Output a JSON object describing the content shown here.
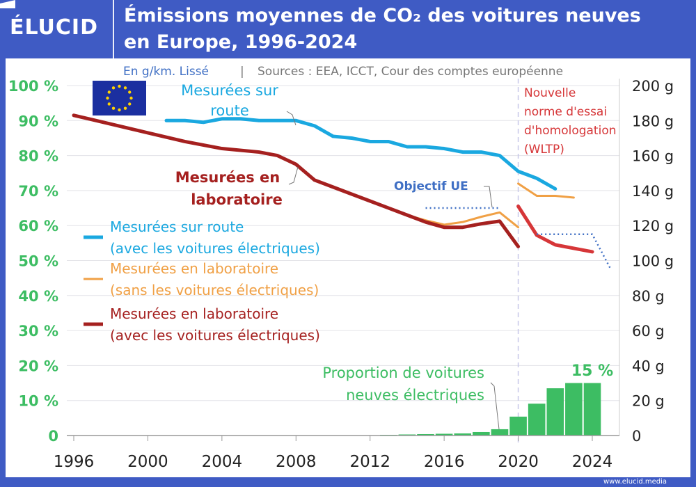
{
  "header": {
    "logo": "ÉLUCID",
    "title_line1": "Émissions moyennes de CO₂ des voitures neuves",
    "title_line2": "en Europe, 1996-2024"
  },
  "subtitle": {
    "unit": "En g/km. Lissé",
    "separator": "|",
    "sources": "Sources : EEA, ICCT, Cour des comptes européenne"
  },
  "footer": {
    "url": "www.elucid.media"
  },
  "colors": {
    "blue_road": "#1aa8e0",
    "orange_lab_no_ev": "#f0a045",
    "darkred_lab_ev": "#a5201f",
    "red_wltp": "#d63638",
    "green_ev": "#3dbd63",
    "objective": "#3f6fc4",
    "header_bg": "#3f5bc4"
  },
  "annotations": {
    "road": [
      "Mesurées sur",
      "route"
    ],
    "lab": [
      "Mesurées en",
      "laboratoire"
    ],
    "objective": "Objectif UE",
    "wltp": [
      "Nouvelle",
      "norme d'essai",
      "d'homologation",
      "(WLTP)"
    ],
    "ev_share": [
      "Proportion de voitures",
      "neuves électriques"
    ],
    "ev_last": "15 %"
  },
  "legend": [
    {
      "line1": "Mesurées sur route",
      "line2": "(avec les voitures électriques)",
      "color": "#1aa8e0"
    },
    {
      "line1": "Mesurées en laboratoire",
      "line2": "(sans les voitures électriques)",
      "color": "#f0a045"
    },
    {
      "line1": "Mesurées en laboratoire",
      "line2": "(avec les voitures électriques)",
      "color": "#a5201f"
    }
  ],
  "chart_data": {
    "type": "line+bar",
    "x_ticks": [
      "1996",
      "2000",
      "2004",
      "2008",
      "2012",
      "2016",
      "2020",
      "2024"
    ],
    "xlim": [
      1996,
      2025
    ],
    "y_left": {
      "ticks": [
        "0",
        "10 %",
        "20 %",
        "30 %",
        "40 %",
        "50 %",
        "60 %",
        "70 %",
        "80 %",
        "90 %",
        "100 %"
      ],
      "range": [
        0,
        100
      ]
    },
    "y_right": {
      "ticks": [
        "0",
        "20 g",
        "40 g",
        "60 g",
        "80 g",
        "100 g",
        "120 g",
        "140 g",
        "160 g",
        "180 g",
        "200 g"
      ],
      "range": [
        0,
        200
      ]
    },
    "grid": true,
    "vline_year": 2020,
    "series": [
      {
        "name": "Mesurées sur route (avec les voitures électriques)",
        "axis": "g",
        "color": "#1aa8e0",
        "points": [
          [
            2001,
            180
          ],
          [
            2002,
            180
          ],
          [
            2003,
            179
          ],
          [
            2004,
            181
          ],
          [
            2005,
            181
          ],
          [
            2006,
            180
          ],
          [
            2007,
            180
          ],
          [
            2008,
            180
          ],
          [
            2009,
            177
          ],
          [
            2010,
            171
          ],
          [
            2011,
            170
          ],
          [
            2012,
            168
          ],
          [
            2013,
            168
          ],
          [
            2014,
            165
          ],
          [
            2015,
            165
          ],
          [
            2016,
            164
          ],
          [
            2017,
            162
          ],
          [
            2018,
            162
          ],
          [
            2019,
            160
          ],
          [
            2020,
            151
          ],
          [
            2021,
            147
          ],
          [
            2022,
            141
          ]
        ]
      },
      {
        "name": "Mesurées en laboratoire (sans les voitures électriques)",
        "axis": "g",
        "color": "#f0a045",
        "points": [
          [
            2013,
            130
          ],
          [
            2014,
            126
          ],
          [
            2015,
            123
          ],
          [
            2016,
            120.5
          ],
          [
            2017,
            122
          ],
          [
            2018,
            125
          ],
          [
            2019,
            127.5
          ],
          [
            2020,
            119
          ]
        ]
      },
      {
        "name": "Mesurées en laboratoire (sans les voitures électriques) WLTP",
        "axis": "g",
        "color": "#f0a045",
        "points": [
          [
            2020,
            144
          ],
          [
            2021,
            137
          ],
          [
            2022,
            137
          ],
          [
            2023,
            136
          ]
        ]
      },
      {
        "name": "Mesurées en laboratoire (avec les voitures électriques)",
        "axis": "g",
        "color": "#a5201f",
        "points": [
          [
            1996,
            183
          ],
          [
            1998,
            178
          ],
          [
            2000,
            173
          ],
          [
            2002,
            168
          ],
          [
            2004,
            164
          ],
          [
            2006,
            162
          ],
          [
            2007,
            160
          ],
          [
            2008,
            155
          ],
          [
            2009,
            146
          ],
          [
            2010,
            142
          ],
          [
            2012,
            134
          ],
          [
            2013,
            130
          ],
          [
            2014,
            126
          ],
          [
            2015,
            122
          ],
          [
            2016,
            119
          ],
          [
            2017,
            119
          ],
          [
            2018,
            121
          ],
          [
            2019,
            122.5
          ],
          [
            2020,
            108
          ]
        ]
      },
      {
        "name": "Mesurées en laboratoire (avec les voitures électriques) WLTP",
        "axis": "g",
        "color": "#d63638",
        "points": [
          [
            2020,
            131
          ],
          [
            2021,
            114.5
          ],
          [
            2022,
            109
          ],
          [
            2023,
            107
          ],
          [
            2024,
            105
          ]
        ]
      },
      {
        "name": "Objectif UE",
        "axis": "g",
        "color": "#3f6fc4",
        "dotted": true,
        "segments": [
          [
            [
              2015,
              130
            ],
            [
              2019,
              130
            ]
          ],
          [
            [
              2021,
              115
            ],
            [
              2024,
              115
            ],
            [
              2025,
              95
            ]
          ]
        ]
      }
    ],
    "bars": {
      "name": "Proportion de voitures neuves électriques",
      "axis": "%",
      "color": "#3dbd63",
      "years": [
        2010,
        2011,
        2012,
        2013,
        2014,
        2015,
        2016,
        2017,
        2018,
        2019,
        2020,
        2021,
        2022,
        2023,
        2024
      ],
      "values": [
        0.05,
        0.05,
        0.1,
        0.2,
        0.3,
        0.4,
        0.5,
        0.6,
        1.0,
        1.8,
        5.4,
        9.1,
        13.5,
        15,
        15
      ]
    }
  }
}
